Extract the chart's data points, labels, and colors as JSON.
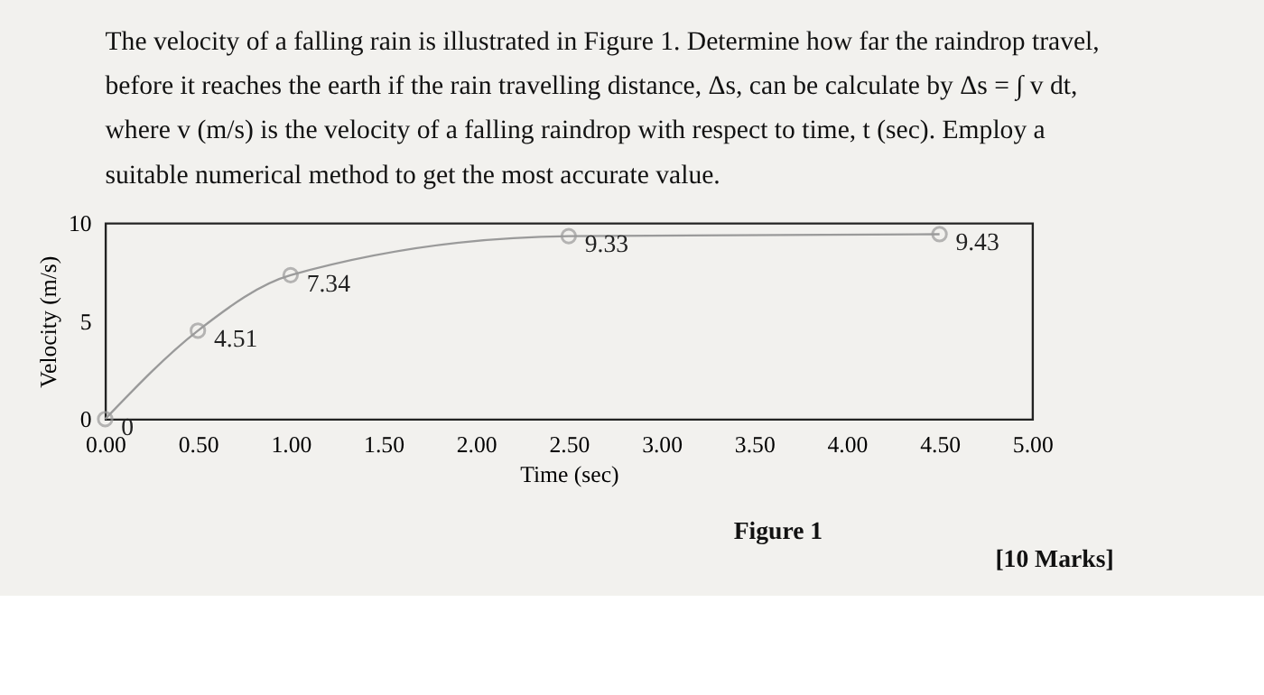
{
  "chart_data": {
    "type": "line",
    "xlabel": "Time (sec)",
    "ylabel": "Velocity (m/s)",
    "x": [
      0,
      0.5,
      1,
      2.5,
      4.5
    ],
    "series": [
      {
        "color": "#9a9a9a",
        "values": [
          0,
          4.51,
          7.34,
          9.33,
          9.43
        ]
      }
    ],
    "xlim": [
      0,
      5
    ],
    "ylim": [
      0,
      10
    ],
    "xticks": [
      {
        "value": 0,
        "label": "0.00"
      },
      {
        "value": 0.5,
        "label": "0.50"
      },
      {
        "value": 1,
        "label": "1.00"
      },
      {
        "value": 1.5,
        "label": "1.50"
      },
      {
        "value": 2,
        "label": "2.00"
      },
      {
        "value": 2.5,
        "label": "2.50"
      },
      {
        "value": 3,
        "label": "3.00"
      },
      {
        "value": 3.5,
        "label": "3.50"
      },
      {
        "value": 4,
        "label": "4.00"
      },
      {
        "value": 4.5,
        "label": "4.50"
      },
      {
        "value": 5,
        "label": "5.00"
      }
    ],
    "yticks": [
      0,
      5,
      10
    ],
    "marker": "circle",
    "line_style": "solid",
    "grid": false,
    "data_labels": true,
    "annotations": [
      "The velocity of a falling rain is illustrated in Figure 1. Determine how far the raindrop travel, before it reaches the earth if the rain travelling distance, Δs, can be calculate by Δs = ∫ v dt, where v (m/s) is the velocity of a falling raindrop with respect to time, t (sec). Employ a suitable numerical method to get the most accurate value.",
      "Figure 1",
      "[10 Marks]"
    ]
  }
}
